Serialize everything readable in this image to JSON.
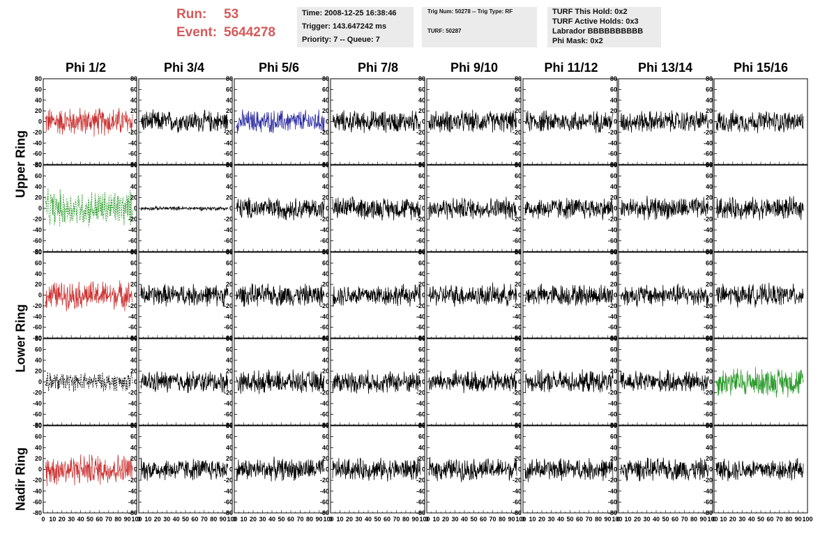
{
  "run": {
    "run_label": "Run:",
    "run_value": "53",
    "event_label": "Event:",
    "event_value": "5644278"
  },
  "info1": {
    "time": "Time: 2008-12-25 16:38:46",
    "trigger": "Trigger: 143.647242 ms",
    "priority": "Priority: 7 -- Queue: 7"
  },
  "info2": {
    "trig": "Trig Num: 50278 -- Trig Type: RF",
    "turf": "TURF: 50287"
  },
  "info3": {
    "hold": "TURF This Hold: 0x2",
    "active": "TURF Active Holds: 0x3",
    "labrador": "Labrador BBBBBBBBBB",
    "phimask": "Phi Mask: 0x2"
  },
  "columns": [
    "Phi 1/2",
    "Phi 3/4",
    "Phi 5/6",
    "Phi 7/8",
    "Phi 9/10",
    "Phi 11/12",
    "Phi 13/14",
    "Phi 15/16"
  ],
  "rings": [
    "Upper Ring",
    "Lower Ring",
    "Nadir Ring"
  ],
  "axes": {
    "y_ticks": [
      "80",
      "60",
      "40",
      "20",
      "0",
      "-20",
      "-40",
      "-60",
      "-80"
    ],
    "x_ticks": [
      "0",
      "10",
      "20",
      "30",
      "40",
      "50",
      "60",
      "70",
      "80",
      "90",
      "100"
    ],
    "ylim": [
      -80,
      80
    ],
    "xlim": [
      0,
      100
    ]
  },
  "colors": {
    "red": "#cc3333",
    "blue": "#2a2aa0",
    "green": "#2a9a2a",
    "black": "#000000",
    "run_text": "#d65a5a",
    "panel_bg": "#ebebeb"
  },
  "chart_data": {
    "type": "line",
    "grid": "off",
    "panels": [
      {
        "row": 0,
        "col": 0,
        "color": "red",
        "amplitude": 22
      },
      {
        "row": 0,
        "col": 2,
        "color": "blue",
        "amplitude": 18
      },
      {
        "row": 1,
        "col": 0,
        "color": "green",
        "style": "dashed",
        "amplitude": 28
      },
      {
        "row": 1,
        "col": 1,
        "color": "black",
        "amplitude": 3
      },
      {
        "row": 2,
        "col": 0,
        "color": "red",
        "amplitude": 22
      },
      {
        "row": 3,
        "col": 0,
        "color": "black",
        "style": "dashed",
        "amplitude": 14
      },
      {
        "row": 3,
        "col": 7,
        "color": "green",
        "amplitude": 22
      },
      {
        "row": 4,
        "col": 0,
        "color": "red",
        "amplitude": 24
      }
    ],
    "default": {
      "color": "black",
      "amplitude": 17
    }
  }
}
